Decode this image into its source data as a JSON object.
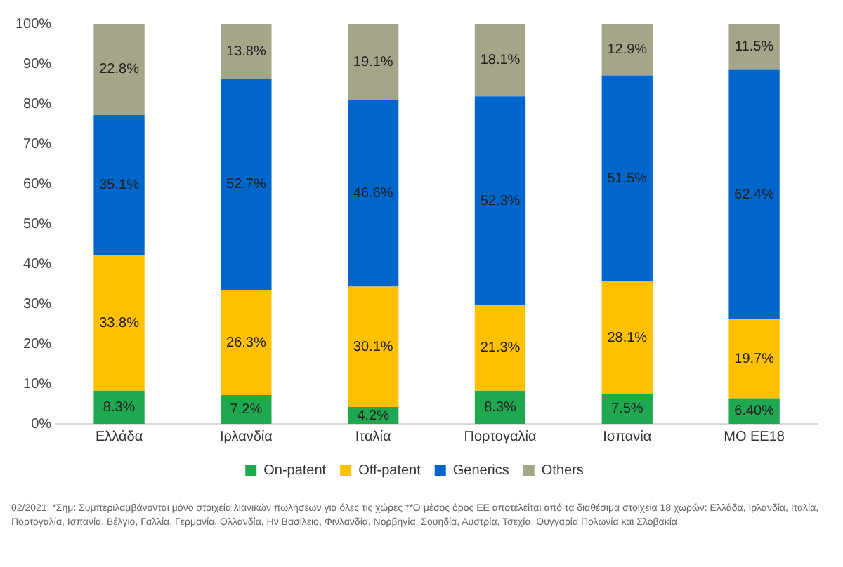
{
  "chart_data": {
    "type": "bar",
    "stacked": true,
    "categories": [
      "Ελλάδα",
      "Ιρλανδία",
      "Ιταλία",
      "Πορτογαλία",
      "Ισπανία",
      "ΜΟ ΕΕ18"
    ],
    "series": [
      {
        "name": "On-patent",
        "color": "#1fa84f",
        "values": [
          8.3,
          7.2,
          4.2,
          8.3,
          7.5,
          6.4
        ],
        "value_labels": [
          "8.3%",
          "7.2%",
          "4.2%",
          "8.3%",
          "7.5%",
          "6.40%"
        ]
      },
      {
        "name": "Off-patent",
        "color": "#ffc000",
        "values": [
          33.8,
          26.3,
          30.1,
          21.3,
          28.1,
          19.7
        ],
        "value_labels": [
          "33.8%",
          "26.3%",
          "30.1%",
          "21.3%",
          "28.1%",
          "19.7%"
        ]
      },
      {
        "name": "Generics",
        "color": "#0066cc",
        "values": [
          35.1,
          52.7,
          46.6,
          52.3,
          51.5,
          62.4
        ],
        "value_labels": [
          "35.1%",
          "52.7%",
          "46.6%",
          "52.3%",
          "51.5%",
          "62.4%"
        ]
      },
      {
        "name": "Others",
        "color": "#a5a58a",
        "values": [
          22.8,
          13.8,
          19.1,
          18.1,
          12.9,
          11.5
        ],
        "value_labels": [
          "22.8%",
          "13.8%",
          "19.1%",
          "18.1%",
          "12.9%",
          "11.5%"
        ]
      }
    ],
    "ylim": [
      0,
      100
    ],
    "yticks": [
      {
        "value": 0,
        "label": "0%"
      },
      {
        "value": 10,
        "label": "10%"
      },
      {
        "value": 20,
        "label": "20%"
      },
      {
        "value": 30,
        "label": "30%"
      },
      {
        "value": 40,
        "label": "40%"
      },
      {
        "value": 50,
        "label": "50%"
      },
      {
        "value": 60,
        "label": "60%"
      },
      {
        "value": 70,
        "label": "70%"
      },
      {
        "value": 80,
        "label": "80%"
      },
      {
        "value": 90,
        "label": "90%"
      },
      {
        "value": 100,
        "label": "100%"
      }
    ],
    "grid": false,
    "legend": "bottom",
    "annotations": [
      "02/2021, *Σημ: Συμπεριλαμβάνονται μόνο στοιχεία λιανικών πωλήσεων για όλες τις χώρες **Ο μέσος όρος ΕΕ αποτελείται από τα διαθέσιμα στοιχεία 18 χωρών: Ελλάδα, Ιρλανδία, Ιταλία, Πορτογαλία, Ισπανία, Βέλγιο, Γαλλία, Γερμανία, Ολλανδία, Ην Βασίλειο, Φινλανδία, Νορβηγία, Σουηδία, Αυστρία, Τσεχία, Ουγγαρία Πολωνία και Σλοβακία"
    ]
  }
}
